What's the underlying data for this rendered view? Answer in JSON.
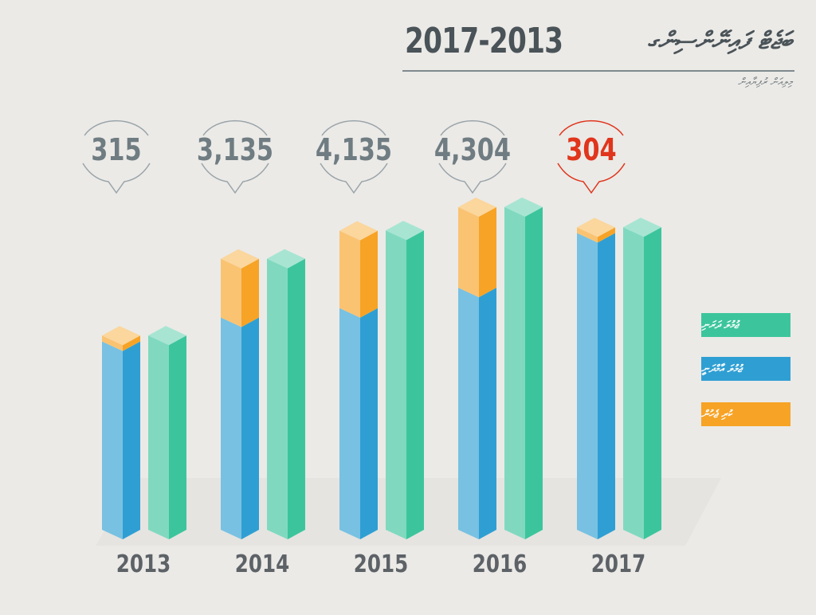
{
  "title": {
    "script_text": "ބަޖެޓް ފައިނޭންސިންގ",
    "years": "2017-2013",
    "subtitle": "މިލިއަން ރުފިޔާއިން"
  },
  "legend": [
    {
      "label": "ޖުމުލަ ދަރަނި",
      "color": "#3cc59c"
    },
    {
      "label": "ޖުމުލަ އާމްދަނީ",
      "color": "#2f9fd3"
    },
    {
      "label": "ކުރި ޖެހުން",
      "color": "#f7a326"
    }
  ],
  "colors": {
    "background": "#ebeae7",
    "bubble_default": "#6f7c82",
    "bubble_highlight": "#e0351c",
    "year_label": "#5d6267"
  },
  "chart_data": {
    "type": "bar",
    "categories": [
      "2013",
      "2014",
      "2015",
      "2016",
      "2017"
    ],
    "callout_values": [
      "315",
      "3,135",
      "4,135",
      "4,304",
      "304"
    ],
    "highlight_index": 4,
    "series": [
      {
        "color": "#2f9fd3",
        "values": [
          10060,
          11340,
          11840,
          12930,
          15850
        ]
      },
      {
        "color": "#f7a326",
        "values": [
          315,
          3135,
          4135,
          4304,
          304
        ]
      },
      {
        "color": "#3cc59c",
        "values": [
          10380,
          14480,
          15990,
          17240,
          16160
        ]
      }
    ],
    "stacked": [
      "blue",
      "orange"
    ],
    "ylim": [
      0,
      18000
    ]
  }
}
